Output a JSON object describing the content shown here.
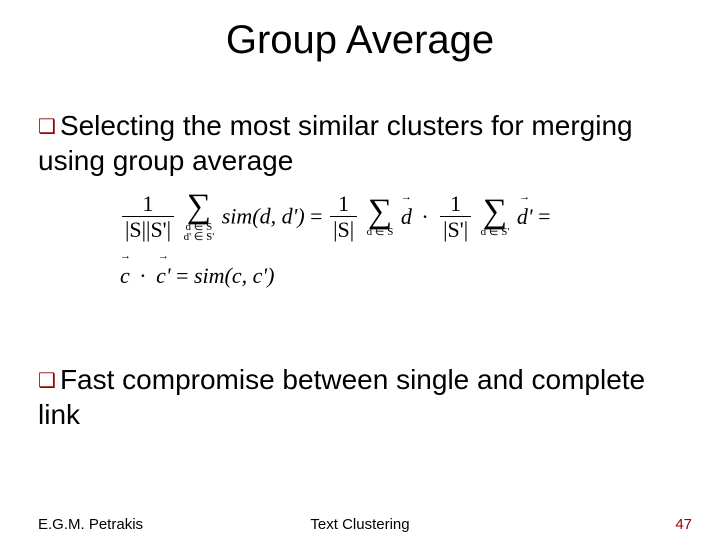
{
  "title": "Group Average",
  "bullets": {
    "b1": "Selecting the most similar clusters for merging using group average",
    "b2": "Fast compromise between single and complete link"
  },
  "bullet_marker": "❑",
  "formula": {
    "line1_left_num": "1",
    "line1_left_den": "|S||S'|",
    "sum1_below_a": "d ∈ S",
    "sum1_below_b": "d' ∈ S'",
    "sim_dd": "sim(d, d')",
    "eq": "=",
    "frac_S_num": "1",
    "frac_S_den": "|S|",
    "sum2_below": "d ∈ S",
    "d_vec": "d",
    "frac_Sp_num": "1",
    "frac_Sp_den": "|S'|",
    "sum3_below": "d ∈ S'",
    "dp_vec": "d'",
    "trailing_eq": "=",
    "line2_lhs_c": "c",
    "dot": "·",
    "line2_lhs_cp": "c'",
    "line2_rhs": "sim(c, c')"
  },
  "footer": {
    "author": "E.G.M. Petrakis",
    "topic": "Text Clustering",
    "page": "47"
  },
  "colors": {
    "accent": "#990000",
    "text": "#000000",
    "background": "#ffffff"
  },
  "font_sizes": {
    "title": 40,
    "body": 28,
    "footer": 15,
    "formula": 22
  }
}
